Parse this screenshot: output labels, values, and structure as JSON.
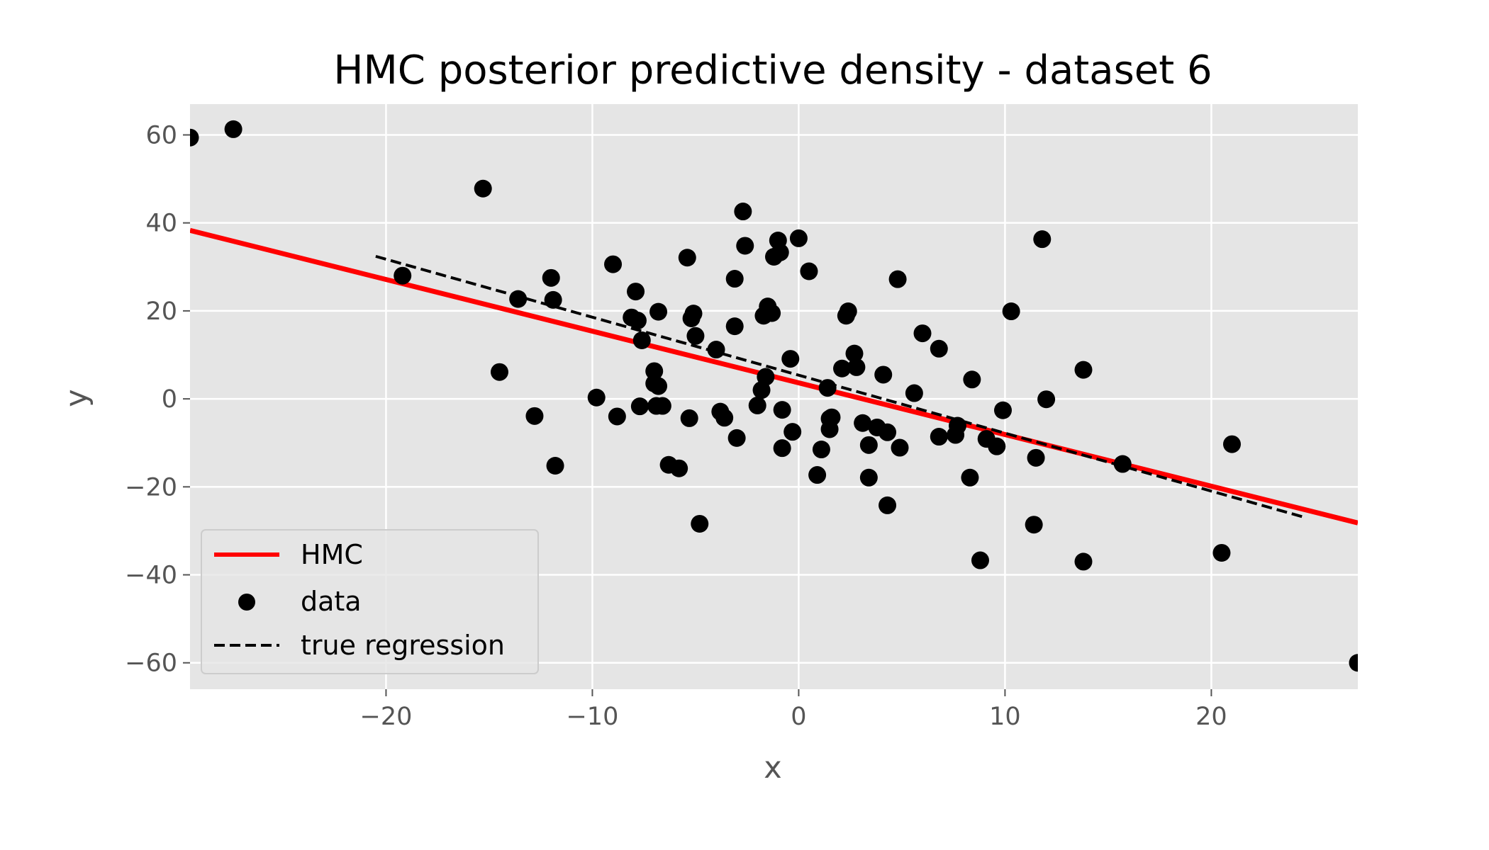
{
  "chart_data": {
    "type": "scatter",
    "title": "HMC posterior predictive density - dataset 6",
    "xlabel": "x",
    "ylabel": "y",
    "xlim": [
      -29.5,
      27.1
    ],
    "ylim": [
      -66,
      67
    ],
    "xticks": [
      -20,
      -10,
      0,
      10,
      20
    ],
    "yticks": [
      -60,
      -40,
      -20,
      0,
      20,
      40,
      60
    ],
    "xtick_labels": [
      "−20",
      "−10",
      "0",
      "10",
      "20"
    ],
    "ytick_labels": [
      "−60",
      "−40",
      "−20",
      "0",
      "20",
      "40",
      "60"
    ],
    "grid": true,
    "legend_position": "lower-left",
    "series": [
      {
        "name": "HMC",
        "kind": "line",
        "color": "#ff0000",
        "x": [
          -29.5,
          27.1
        ],
        "y": [
          38.3,
          -28.2
        ]
      },
      {
        "name": "data",
        "kind": "scatter",
        "color": "#000000",
        "x": [
          -29.5,
          -27.4,
          -15.3,
          -19.2,
          -13.6,
          -14.5,
          -12.8,
          -12.0,
          -11.9,
          -11.8,
          -9.8,
          -8.8,
          -9.0,
          -7.9,
          -7.8,
          -8.1,
          -7.6,
          -7.7,
          -7.0,
          -6.8,
          -7.0,
          -6.9,
          -6.6,
          -6.3,
          -6.8,
          -5.8,
          -5.4,
          -5.3,
          -5.2,
          -5.1,
          -5.0,
          -4.8,
          -4.0,
          -3.8,
          -3.6,
          -3.1,
          -3.1,
          -3.0,
          -2.7,
          -2.6,
          -1.8,
          -1.6,
          -2.0,
          -1.7,
          -1.5,
          -1.3,
          -1.2,
          -1.0,
          -0.9,
          -0.8,
          -0.8,
          -0.4,
          -0.3,
          0.0,
          0.5,
          0.9,
          1.1,
          1.4,
          1.5,
          1.5,
          1.6,
          2.1,
          2.3,
          2.4,
          2.7,
          2.8,
          3.1,
          3.4,
          3.4,
          3.8,
          4.1,
          4.3,
          4.3,
          4.8,
          4.9,
          5.6,
          6.0,
          6.8,
          6.8,
          7.6,
          7.7,
          8.3,
          8.4,
          8.8,
          9.1,
          9.6,
          9.9,
          10.3,
          11.4,
          11.5,
          11.8,
          12.0,
          13.8,
          13.8,
          15.7,
          20.5,
          21.0,
          27.1
        ],
        "y": [
          59.4,
          61.3,
          47.8,
          28.0,
          22.7,
          6.1,
          -3.9,
          27.5,
          22.5,
          -15.2,
          0.3,
          -4.0,
          30.6,
          24.4,
          17.8,
          18.5,
          13.3,
          -1.7,
          6.3,
          19.8,
          3.5,
          -1.6,
          -1.6,
          -15.0,
          2.9,
          -15.8,
          32.1,
          -4.4,
          18.3,
          19.4,
          14.3,
          -28.4,
          11.2,
          -2.9,
          -4.3,
          27.3,
          16.5,
          -8.9,
          42.6,
          34.8,
          2.0,
          5.0,
          -1.5,
          18.9,
          21.0,
          19.5,
          32.3,
          36.0,
          33.3,
          -2.5,
          -11.2,
          9.1,
          -7.5,
          36.5,
          29.0,
          -17.3,
          -11.5,
          2.5,
          -6.9,
          -4.5,
          -4.2,
          6.9,
          18.9,
          19.9,
          10.3,
          7.2,
          -5.5,
          -17.9,
          -10.5,
          -6.5,
          5.5,
          -24.2,
          -7.6,
          27.2,
          -11.1,
          1.3,
          14.9,
          11.4,
          -8.6,
          -8.2,
          -6.1,
          -17.9,
          4.4,
          -36.7,
          -9.1,
          -10.8,
          -2.6,
          19.9,
          -28.6,
          -13.4,
          36.3,
          -0.1,
          6.6,
          -37.0,
          -14.8,
          -35.0,
          -10.3,
          -60.0
        ]
      },
      {
        "name": "true regression",
        "kind": "dashed-line",
        "color": "#000000",
        "x": [
          -20.5,
          24.5
        ],
        "y": [
          32.4,
          -26.9
        ]
      }
    ]
  }
}
